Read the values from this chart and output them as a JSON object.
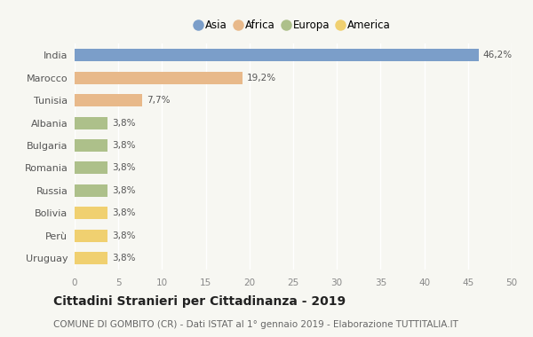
{
  "countries": [
    "India",
    "Marocco",
    "Tunisia",
    "Albania",
    "Bulgaria",
    "Romania",
    "Russia",
    "Bolivia",
    "Perù",
    "Uruguay"
  ],
  "values": [
    46.2,
    19.2,
    7.7,
    3.8,
    3.8,
    3.8,
    3.8,
    3.8,
    3.8,
    3.8
  ],
  "labels": [
    "46,2%",
    "19,2%",
    "7,7%",
    "3,8%",
    "3,8%",
    "3,8%",
    "3,8%",
    "3,8%",
    "3,8%",
    "3,8%"
  ],
  "colors": [
    "#7b9ec9",
    "#e8b98a",
    "#e8b98a",
    "#adc08a",
    "#adc08a",
    "#adc08a",
    "#adc08a",
    "#f0d070",
    "#f0d070",
    "#f0d070"
  ],
  "legend_labels": [
    "Asia",
    "Africa",
    "Europa",
    "America"
  ],
  "legend_colors": [
    "#7b9ec9",
    "#e8b98a",
    "#adc08a",
    "#f0d070"
  ],
  "xlim": [
    0,
    50
  ],
  "xticks": [
    0,
    5,
    10,
    15,
    20,
    25,
    30,
    35,
    40,
    45,
    50
  ],
  "title": "Cittadini Stranieri per Cittadinanza - 2019",
  "subtitle": "COMUNE DI GOMBITO (CR) - Dati ISTAT al 1° gennaio 2019 - Elaborazione TUTTITALIA.IT",
  "title_fontsize": 10,
  "subtitle_fontsize": 7.5,
  "bar_height": 0.55,
  "background_color": "#f7f7f2",
  "grid_color": "#ffffff",
  "label_fontsize": 7.5,
  "ytick_fontsize": 8,
  "xtick_fontsize": 7.5
}
